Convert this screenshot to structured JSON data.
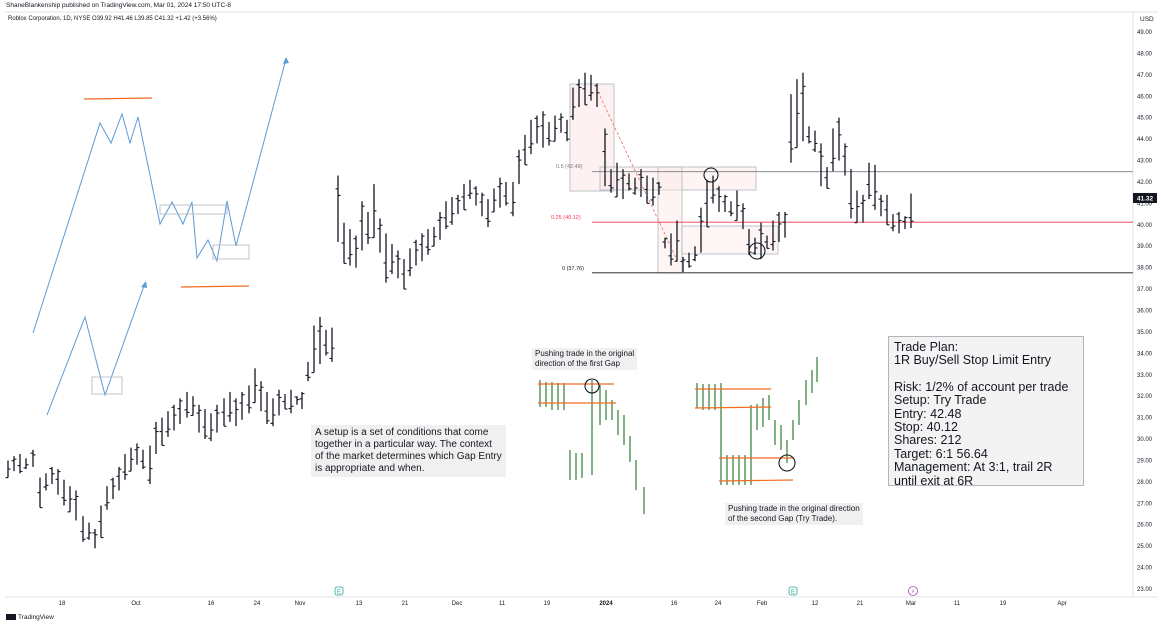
{
  "header": {
    "publisher_line": "ShaneBlankenship published on TradingView.com, Mar 01, 2024 17:50 UTC-8",
    "symbol_line": "Roblox Corporation, 1D, NYSE  O39.92  H41.46  L39.85  C41.32  +1.42 (+3.56%)"
  },
  "axis": {
    "currency": "USD",
    "y_ticks": [
      "49.00",
      "48.00",
      "47.00",
      "46.00",
      "45.00",
      "44.00",
      "43.00",
      "42.00",
      "41.00",
      "40.00",
      "39.00",
      "38.00",
      "37.00",
      "36.00",
      "35.00",
      "34.00",
      "33.00",
      "32.00",
      "31.00",
      "30.00",
      "29.00",
      "28.00",
      "27.00",
      "26.00",
      "25.00",
      "24.00",
      "23.00"
    ],
    "x_ticks": [
      "18",
      "Oct",
      "16",
      "24",
      "Nov",
      "13",
      "21",
      "Dec",
      "11",
      "19",
      "2024",
      "16",
      "24",
      "Feb",
      "12",
      "21",
      "Mar",
      "11",
      "19",
      "Apr"
    ],
    "last_price": "41.32"
  },
  "fib": {
    "level_05": "0.5 (42.48)",
    "level_025": "0.25 (40.12)",
    "level_0": "0 (37.76)"
  },
  "annotations": {
    "setup_text": "A setup is a set of conditions that come\ntogether in a particular way.  The context\nof the market determines which Gap Entry\nis appropriate and when.",
    "first_gap": "Pushing trade in the original\ndirection of the first Gap",
    "second_gap": "Pushing trade in the original direction\nof the second Gap (Try Trade)."
  },
  "trade_plan": {
    "title": "Trade Plan:",
    "subtitle": "1R Buy/Sell Stop Limit Entry",
    "lines": [
      "Risk: 1/2% of account per trade",
      "Setup: Try Trade",
      "Entry: 42.48",
      "Stop: 40.12",
      "Shares: 212",
      "Target: 6:1 56.64",
      "Management: At 3:1, trail 2R",
      "until exit at 6R"
    ]
  },
  "footer": {
    "brand": "TradingView"
  },
  "markers": {
    "earnings": "E",
    "event": "⚡"
  },
  "chart_data": {
    "type": "ohlc",
    "symbol": "Roblox Corporation, 1D, NYSE",
    "ylim": [
      23,
      49.5
    ],
    "current": {
      "open": 39.92,
      "high": 41.46,
      "low": 39.85,
      "close": 41.32
    },
    "horizontal_lines": [
      {
        "price": 42.48,
        "color": "#787b86"
      },
      {
        "price": 40.12,
        "color": "#f23645"
      },
      {
        "price": 37.76,
        "color": "#131722"
      }
    ],
    "colors": {
      "bars": "#131722",
      "schematic": "#5b9bd5",
      "level": "#f26b21",
      "green_bars": "#2e7d32"
    }
  }
}
